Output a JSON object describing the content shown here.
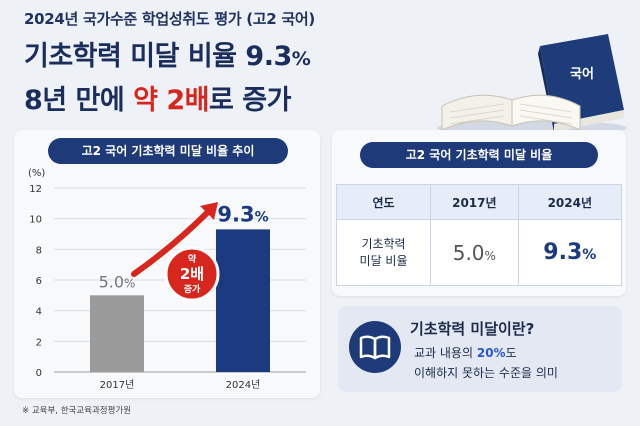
{
  "header": {
    "subtitle": "2024년 국가수준 학업성취도 평가 (고2 국어)",
    "headline1": "기초학력 미달 비율 9.3",
    "headline1_pct": "%",
    "headline2_pre": "8년 만에 ",
    "headline2_red": "약 2배",
    "headline2_post": "로 증가"
  },
  "book_label": "국어",
  "chart_data": {
    "type": "bar",
    "title": "고2 국어 기초학력 미달 비율 추이",
    "ylabel": "(%)",
    "ylim": [
      0,
      12
    ],
    "yticks": [
      "0",
      "2",
      "4",
      "6",
      "8",
      "10",
      "12"
    ],
    "categories": [
      "2017년",
      "2024년"
    ],
    "values": [
      5.0,
      9.3
    ],
    "value_labels": [
      "5.0",
      "9.3"
    ],
    "value_unit": "%",
    "bar_colors": [
      "#9a9a9a",
      "#1c3a80"
    ],
    "annotation": [
      "약",
      "2배",
      "증가"
    ]
  },
  "table": {
    "title": "고2 국어 기초학력 미달 비율",
    "headers": [
      "연도",
      "2017년",
      "2024년"
    ],
    "row_label": [
      "기초학력",
      "미달 비율"
    ],
    "values": [
      "5.0",
      "9.3"
    ],
    "unit": "%"
  },
  "info": {
    "title": "기초학력 미달이란?",
    "line1_pre": "교과 내용의 ",
    "line1_highlight": "20%",
    "line1_post": "도",
    "line2": "이해하지 못하는 수준을 의미"
  },
  "footer": "※ 교육부, 한국교육과정평가원",
  "colors": {
    "navy": "#1c3a80",
    "red": "#d7261e",
    "gray": "#9a9a9a"
  }
}
